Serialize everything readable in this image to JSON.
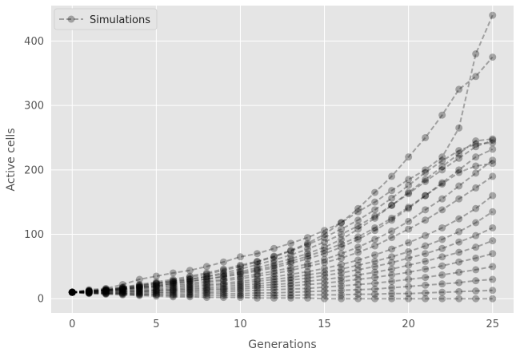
{
  "chart_data": {
    "type": "line",
    "title": "",
    "xlabel": "Generations",
    "ylabel": "Active cells",
    "xlim": [
      -1.25,
      26.25
    ],
    "ylim": [
      -22,
      455
    ],
    "xticks": [
      0,
      5,
      10,
      15,
      20,
      25
    ],
    "yticks": [
      0,
      100,
      200,
      300,
      400
    ],
    "grid": true,
    "legend": {
      "position": "top-left",
      "entries": [
        "Simulations"
      ]
    },
    "style": {
      "background": "#e5e5e5",
      "grid": "#ffffff",
      "line_color": "#000000",
      "line_alpha": 0.3,
      "marker": "circle",
      "linestyle": "dashed"
    },
    "x": [
      0,
      1,
      2,
      3,
      4,
      5,
      6,
      7,
      8,
      9,
      10,
      11,
      12,
      13,
      14,
      15,
      16,
      17,
      18,
      19,
      20,
      21,
      22,
      23,
      24,
      25
    ],
    "series": [
      {
        "values": [
          10,
          14,
          16,
          22,
          30,
          35,
          40,
          44,
          50,
          57,
          65,
          70,
          78,
          86,
          95,
          106,
          118,
          135,
          150,
          168,
          185,
          200,
          220,
          265,
          380,
          440
        ]
      },
      {
        "values": [
          10,
          12,
          15,
          18,
          22,
          26,
          30,
          35,
          40,
          46,
          52,
          58,
          66,
          75,
          86,
          100,
          118,
          140,
          165,
          190,
          220,
          250,
          285,
          325,
          345,
          375
        ]
      },
      {
        "values": [
          10,
          13,
          14,
          17,
          20,
          24,
          27,
          30,
          34,
          38,
          42,
          48,
          55,
          62,
          70,
          80,
          92,
          108,
          125,
          145,
          165,
          185,
          205,
          225,
          245,
          248
        ]
      },
      {
        "values": [
          10,
          11,
          13,
          15,
          18,
          20,
          24,
          27,
          30,
          34,
          38,
          43,
          48,
          55,
          62,
          70,
          80,
          92,
          106,
          122,
          140,
          160,
          180,
          200,
          220,
          232
        ]
      },
      {
        "values": [
          10,
          12,
          13,
          15,
          17,
          19,
          22,
          24,
          27,
          30,
          34,
          38,
          43,
          48,
          54,
          61,
          70,
          80,
          92,
          105,
          120,
          138,
          155,
          175,
          195,
          215
        ]
      },
      {
        "values": [
          10,
          11,
          12,
          14,
          16,
          18,
          20,
          22,
          25,
          28,
          31,
          35,
          39,
          44,
          50,
          56,
          63,
          72,
          82,
          95,
          108,
          122,
          138,
          155,
          172,
          190
        ]
      },
      {
        "values": [
          10,
          11,
          12,
          13,
          15,
          16,
          18,
          20,
          22,
          24,
          27,
          30,
          34,
          38,
          42,
          47,
          53,
          60,
          68,
          77,
          87,
          98,
          110,
          124,
          140,
          160
        ]
      },
      {
        "values": [
          10,
          10,
          11,
          12,
          13,
          14,
          16,
          18,
          20,
          22,
          24,
          27,
          30,
          33,
          37,
          41,
          46,
          52,
          58,
          65,
          73,
          82,
          92,
          104,
          118,
          135
        ]
      },
      {
        "values": [
          10,
          10,
          11,
          11,
          12,
          13,
          14,
          16,
          17,
          19,
          21,
          23,
          26,
          29,
          32,
          36,
          40,
          45,
          50,
          56,
          63,
          70,
          78,
          88,
          98,
          110
        ]
      },
      {
        "values": [
          10,
          10,
          10,
          11,
          11,
          12,
          13,
          14,
          15,
          16,
          18,
          20,
          22,
          24,
          27,
          30,
          33,
          37,
          41,
          46,
          52,
          58,
          65,
          72,
          80,
          90
        ]
      },
      {
        "values": [
          10,
          9,
          9,
          9,
          10,
          10,
          11,
          12,
          13,
          14,
          15,
          17,
          18,
          20,
          22,
          24,
          27,
          30,
          33,
          37,
          41,
          46,
          51,
          57,
          63,
          70
        ]
      },
      {
        "values": [
          10,
          9,
          9,
          9,
          8,
          9,
          9,
          10,
          10,
          11,
          12,
          13,
          14,
          15,
          16,
          18,
          20,
          22,
          24,
          27,
          30,
          33,
          37,
          41,
          45,
          50
        ]
      },
      {
        "values": [
          10,
          9,
          8,
          8,
          7,
          7,
          7,
          7,
          8,
          8,
          8,
          9,
          9,
          10,
          11,
          12,
          13,
          14,
          15,
          17,
          19,
          21,
          23,
          25,
          28,
          30
        ]
      },
      {
        "values": [
          10,
          9,
          8,
          7,
          6,
          6,
          5,
          5,
          5,
          5,
          5,
          5,
          5,
          5,
          6,
          6,
          6,
          7,
          7,
          8,
          8,
          9,
          10,
          11,
          12,
          13
        ]
      },
      {
        "values": [
          10,
          8,
          7,
          6,
          5,
          4,
          3,
          3,
          2,
          2,
          2,
          1,
          1,
          1,
          1,
          0,
          0,
          0,
          0,
          0,
          0,
          0,
          0,
          0,
          0,
          0
        ]
      },
      {
        "values": [
          10,
          12,
          14,
          17,
          21,
          24,
          28,
          33,
          38,
          44,
          50,
          57,
          65,
          74,
          84,
          95,
          108,
          122,
          138,
          156,
          176,
          196,
          214,
          230,
          240,
          242
        ]
      },
      {
        "values": [
          10,
          11,
          13,
          16,
          19,
          23,
          26,
          30,
          35,
          40,
          46,
          53,
          60,
          68,
          77,
          88,
          100,
          113,
          128,
          145,
          163,
          182,
          200,
          218,
          236,
          246
        ]
      },
      {
        "values": [
          10,
          12,
          13,
          15,
          18,
          21,
          24,
          27,
          31,
          35,
          40,
          45,
          51,
          58,
          66,
          75,
          85,
          96,
          110,
          125,
          142,
          160,
          178,
          196,
          206,
          210
        ]
      }
    ]
  },
  "legend": {
    "label": "Simulations"
  }
}
